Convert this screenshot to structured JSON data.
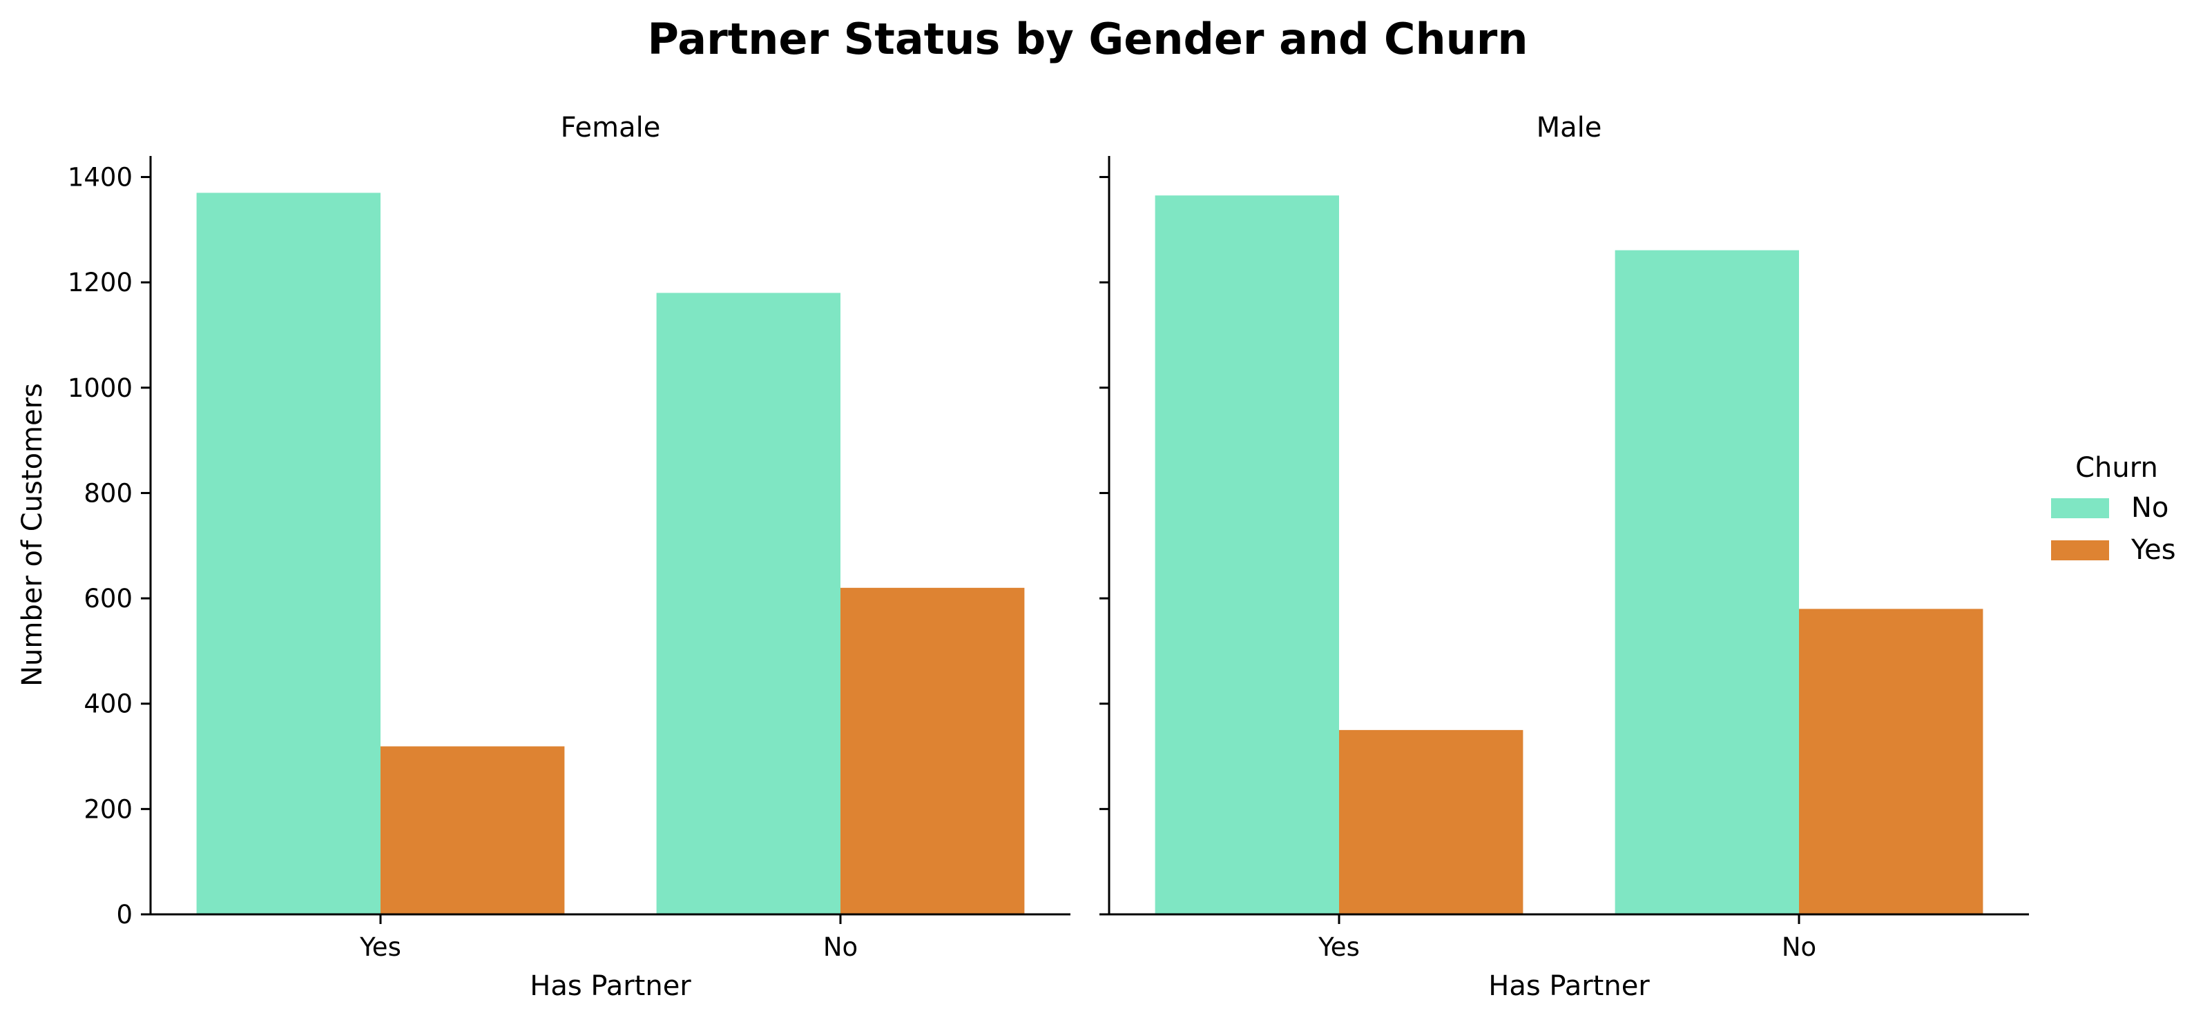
{
  "chart_data": {
    "type": "bar",
    "title": "Partner Status by Gender and Churn",
    "ylabel": "Number of Customers",
    "ylim": [
      0,
      1440
    ],
    "yticks": [
      0,
      200,
      400,
      600,
      800,
      1000,
      1200,
      1400
    ],
    "legend": {
      "title": "Churn",
      "placement": "right",
      "entries": [
        {
          "label": "No",
          "color": "#7fe6c3"
        },
        {
          "label": "Yes",
          "color": "#de8332"
        }
      ]
    },
    "facets": [
      {
        "title": "Female",
        "xlabel": "Has Partner",
        "categories": [
          "Yes",
          "No"
        ],
        "series": [
          {
            "name": "No",
            "values": [
              1370,
              1180
            ]
          },
          {
            "name": "Yes",
            "values": [
              319,
              620
            ]
          }
        ]
      },
      {
        "title": "Male",
        "xlabel": "Has Partner",
        "categories": [
          "Yes",
          "No"
        ],
        "series": [
          {
            "name": "No",
            "values": [
              1365,
              1261
            ]
          },
          {
            "name": "Yes",
            "values": [
              350,
              580
            ]
          }
        ]
      }
    ]
  }
}
